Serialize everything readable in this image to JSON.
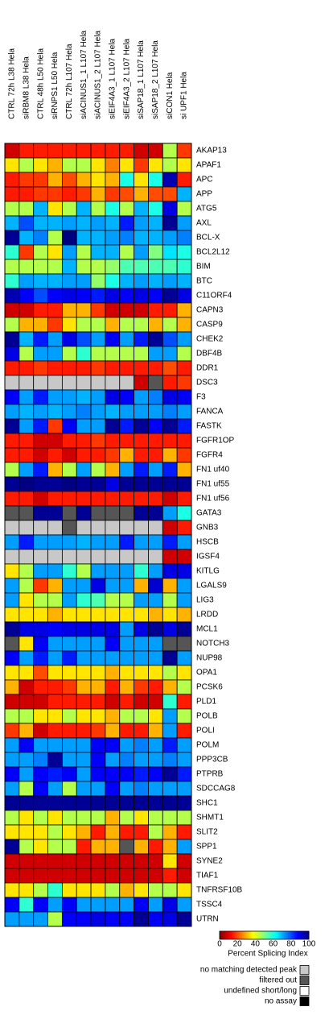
{
  "chart_data": {
    "type": "heatmap",
    "colormap": "jet_reversed",
    "columns": [
      "CTRL 72h L38 Hela",
      "siRBM8 L38 Hela",
      "CTRL 48h L50 Hela",
      "siRNPS1 L50 Hela",
      "CTRL 72h L107 Hela",
      "siACINUS1_1 L107 Hela",
      "siACINUS1_2 L107 Hela",
      "siEIF4A3_1 L107 Hela",
      "siEIF4A3_2 L107 Hela",
      "siSAP18_1 L107 Hela",
      "siSAP18_2 L107 Hela",
      "siCON1 Hela",
      "si UPF1 Hela"
    ],
    "rows": [
      "AKAP13",
      "APAF1",
      "APC",
      "APP",
      "ATG5",
      "AXL",
      "BCL-X",
      "BCL2L12",
      "BIM",
      "BTC",
      "C11ORF4",
      "CAPN3",
      "CASP9",
      "CHEK2",
      "DBF4B",
      "DDR1",
      "DSC3",
      "F3",
      "FANCA",
      "FASTK",
      "FGFR1OP",
      "FGFR4",
      "FN1 uf40",
      "FN1 uf55",
      "FN1 uf56",
      "GATA3",
      "GNB3",
      "HSCB",
      "IGSF4",
      "KITLG",
      "LGALS9",
      "LIG3",
      "LRDD",
      "MCL1",
      "NOTCH3",
      "NUP98",
      "OPA1",
      "PCSK6",
      "PLD1",
      "POLB",
      "POLI",
      "POLM",
      "PPP3CB",
      "PTPRB",
      "SDCCAG8",
      "SHC1",
      "SHMT1",
      "SLIT2",
      "SPP1",
      "SYNE2",
      "TIAF1",
      "TNFRSF10B",
      "TSSC4",
      "UTRN"
    ],
    "values": [
      [
        8,
        15,
        15,
        15,
        15,
        15,
        15,
        15,
        15,
        8,
        8,
        45,
        18
      ],
      [
        35,
        45,
        35,
        30,
        45,
        45,
        35,
        25,
        35,
        18,
        35,
        45,
        35
      ],
      [
        15,
        18,
        18,
        30,
        20,
        30,
        35,
        30,
        60,
        35,
        60,
        95,
        15
      ],
      [
        15,
        15,
        18,
        18,
        15,
        18,
        30,
        18,
        20,
        30,
        20,
        20,
        70
      ],
      [
        45,
        45,
        70,
        35,
        45,
        70,
        45,
        60,
        45,
        70,
        60,
        90,
        45
      ],
      [
        70,
        80,
        70,
        70,
        72,
        70,
        72,
        70,
        85,
        72,
        70,
        98,
        72
      ],
      [
        98,
        70,
        75,
        45,
        100,
        70,
        70,
        72,
        75,
        70,
        70,
        72,
        75
      ],
      [
        58,
        18,
        45,
        35,
        72,
        45,
        70,
        70,
        45,
        72,
        50,
        65,
        60
      ],
      [
        45,
        45,
        45,
        45,
        70,
        45,
        45,
        48,
        55,
        55,
        55,
        55,
        58
      ],
      [
        58,
        72,
        70,
        70,
        72,
        72,
        48,
        60,
        70,
        72,
        70,
        72,
        70
      ],
      [
        95,
        88,
        80,
        88,
        90,
        88,
        85,
        90,
        88,
        90,
        88,
        98,
        90
      ],
      [
        8,
        8,
        15,
        15,
        30,
        30,
        18,
        8,
        8,
        8,
        15,
        15,
        30
      ],
      [
        45,
        30,
        30,
        18,
        35,
        45,
        45,
        30,
        45,
        45,
        30,
        45,
        30
      ],
      [
        98,
        70,
        85,
        72,
        90,
        80,
        72,
        88,
        72,
        85,
        98,
        80,
        72
      ],
      [
        90,
        45,
        72,
        72,
        45,
        58,
        45,
        45,
        45,
        45,
        72,
        72,
        45
      ],
      [
        15,
        15,
        18,
        15,
        15,
        15,
        18,
        15,
        15,
        15,
        15,
        20,
        15
      ],
      [
        "no matching detected peak",
        "no matching detected peak",
        "no matching detected peak",
        "no matching detected peak",
        "no matching detected peak",
        "no matching detected peak",
        "no matching detected peak",
        "no matching detected peak",
        "no matching detected peak",
        8,
        "filtered out",
        15,
        18
      ],
      [
        88,
        72,
        85,
        72,
        72,
        70,
        72,
        90,
        88,
        72,
        75,
        90,
        88
      ],
      [
        72,
        70,
        72,
        70,
        72,
        75,
        72,
        70,
        72,
        72,
        72,
        75,
        72
      ],
      [
        98,
        72,
        85,
        18,
        88,
        72,
        72,
        98,
        85,
        98,
        88,
        98,
        85
      ],
      [
        15,
        15,
        8,
        8,
        15,
        15,
        18,
        15,
        15,
        15,
        15,
        15,
        15
      ],
      [
        15,
        15,
        8,
        15,
        8,
        15,
        15,
        18,
        30,
        15,
        15,
        30,
        18
      ],
      [
        45,
        72,
        85,
        30,
        45,
        72,
        45,
        30,
        72,
        85,
        72,
        85,
        30
      ],
      [
        98,
        100,
        98,
        98,
        100,
        98,
        98,
        90,
        98,
        98,
        98,
        98,
        98
      ],
      [
        15,
        15,
        8,
        15,
        15,
        15,
        15,
        15,
        15,
        15,
        15,
        8,
        15
      ],
      [
        "filtered out",
        "filtered out",
        98,
        98,
        "filtered out",
        98,
        "filtered out",
        "filtered out",
        "filtered out",
        98,
        98,
        72,
        60
      ],
      [
        "no matching detected peak",
        "no matching detected peak",
        "no matching detected peak",
        "no matching detected peak",
        "filtered out",
        "no matching detected peak",
        "no matching detected peak",
        "no matching detected peak",
        "no matching detected peak",
        "no matching detected peak",
        "no matching detected peak",
        8,
        15
      ],
      [
        72,
        85,
        72,
        72,
        72,
        70,
        72,
        72,
        85,
        72,
        72,
        85,
        72
      ],
      [
        "no matching detected peak",
        "no matching detected peak",
        "no matching detected peak",
        "no matching detected peak",
        "no matching detected peak",
        "no matching detected peak",
        "no matching detected peak",
        "no matching detected peak",
        "no matching detected peak",
        "no matching detected peak",
        "no matching detected peak",
        8,
        8
      ],
      [
        35,
        45,
        72,
        72,
        58,
        45,
        72,
        72,
        72,
        58,
        72,
        90,
        90
      ],
      [
        72,
        45,
        18,
        30,
        72,
        72,
        90,
        72,
        72,
        30,
        92,
        30,
        72
      ],
      [
        72,
        35,
        45,
        45,
        72,
        58,
        55,
        45,
        45,
        72,
        72,
        45,
        72
      ],
      [
        35,
        35,
        35,
        30,
        35,
        35,
        35,
        35,
        35,
        35,
        30,
        35,
        30
      ],
      [
        98,
        90,
        90,
        88,
        90,
        90,
        90,
        90,
        72,
        90,
        98,
        90,
        98
      ],
      [
        "filtered out",
        35,
        88,
        72,
        72,
        72,
        72,
        88,
        72,
        72,
        72,
        "filtered out",
        "filtered out"
      ],
      [
        88,
        72,
        85,
        72,
        85,
        72,
        72,
        72,
        72,
        72,
        72,
        98,
        72
      ],
      [
        35,
        35,
        20,
        35,
        35,
        35,
        35,
        30,
        35,
        35,
        35,
        45,
        35
      ],
      [
        30,
        8,
        15,
        15,
        18,
        30,
        30,
        15,
        30,
        18,
        15,
        30,
        45
      ],
      [
        8,
        8,
        8,
        15,
        15,
        15,
        15,
        8,
        15,
        8,
        8,
        58,
        15
      ],
      [
        45,
        45,
        35,
        35,
        45,
        35,
        35,
        30,
        45,
        45,
        35,
        72,
        45
      ],
      [
        18,
        30,
        8,
        15,
        15,
        15,
        18,
        30,
        15,
        15,
        30,
        72,
        15
      ],
      [
        72,
        88,
        72,
        72,
        72,
        72,
        88,
        88,
        72,
        75,
        72,
        85,
        72
      ],
      [
        72,
        72,
        75,
        98,
        72,
        72,
        88,
        72,
        75,
        72,
        72,
        75,
        72
      ],
      [
        88,
        72,
        88,
        85,
        88,
        72,
        88,
        88,
        88,
        85,
        88,
        98,
        85
      ],
      [
        72,
        45,
        88,
        72,
        45,
        72,
        72,
        88,
        72,
        75,
        72,
        72,
        72
      ],
      [
        98,
        98,
        98,
        98,
        98,
        98,
        98,
        98,
        98,
        98,
        98,
        98,
        98
      ],
      [
        45,
        35,
        45,
        35,
        45,
        45,
        45,
        30,
        45,
        35,
        45,
        45,
        45
      ],
      [
        35,
        35,
        35,
        45,
        35,
        30,
        15,
        30,
        15,
        15,
        45,
        30,
        15
      ],
      [
        98,
        45,
        35,
        45,
        45,
        15,
        30,
        30,
        "filtered out",
        30,
        15,
        30,
        72
      ],
      [
        8,
        8,
        8,
        8,
        8,
        8,
        8,
        8,
        8,
        8,
        8,
        35,
        8
      ],
      [
        8,
        8,
        8,
        8,
        8,
        8,
        8,
        8,
        8,
        8,
        8,
        15,
        8
      ],
      [
        35,
        35,
        45,
        58,
        35,
        35,
        35,
        45,
        30,
        35,
        45,
        45,
        35
      ],
      [
        88,
        58,
        88,
        72,
        88,
        72,
        72,
        72,
        72,
        88,
        72,
        90,
        72
      ],
      [
        72,
        72,
        72,
        45,
        88,
        88,
        90,
        88,
        88,
        98,
        88,
        90,
        98
      ]
    ],
    "colorbar": {
      "label": "Percent Splicing Index",
      "lim": [
        0,
        100
      ],
      "ticks": [
        0,
        20,
        40,
        60,
        80,
        100
      ]
    },
    "legend": [
      {
        "label": "no matching detected peak",
        "color": "#c8c8c8"
      },
      {
        "label": "filtered out",
        "color": "#555555"
      },
      {
        "label": "undefined short/long",
        "color": "#ffffff"
      },
      {
        "label": "no assay",
        "color": "#000000"
      }
    ]
  }
}
